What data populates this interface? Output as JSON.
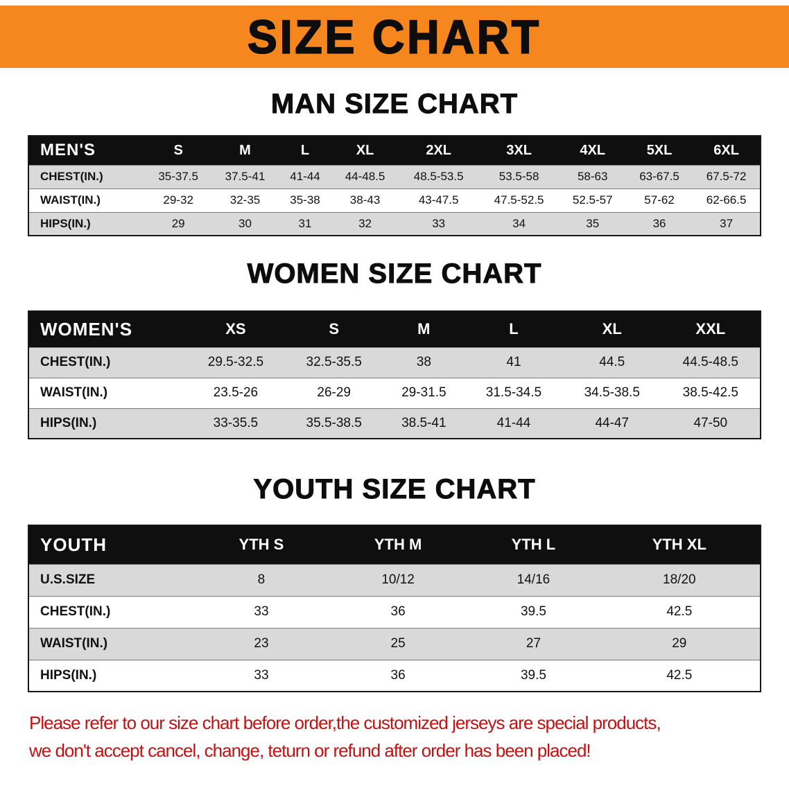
{
  "banner": {
    "title": "SIZE CHART",
    "bg_color": "#f6871f",
    "text_color": "#0d0d0d"
  },
  "sections": [
    {
      "id": "men",
      "heading": "MAN SIZE CHART",
      "table": {
        "title": "MEN'S",
        "columns": [
          "S",
          "M",
          "L",
          "XL",
          "2XL",
          "3XL",
          "4XL",
          "5XL",
          "6XL"
        ],
        "rows": [
          {
            "label": "CHEST(IN.)",
            "values": [
              "35-37.5",
              "37.5-41",
              "41-44",
              "44-48.5",
              "48.5-53.5",
              "53.5-58",
              "58-63",
              "63-67.5",
              "67.5-72"
            ]
          },
          {
            "label": "WAIST(IN.)",
            "values": [
              "29-32",
              "32-35",
              "35-38",
              "38-43",
              "43-47.5",
              "47.5-52.5",
              "52.5-57",
              "57-62",
              "62-66.5"
            ]
          },
          {
            "label": "HIPS(IN.)",
            "values": [
              "29",
              "30",
              "31",
              "32",
              "33",
              "34",
              "35",
              "36",
              "37"
            ]
          }
        ]
      }
    },
    {
      "id": "women",
      "heading": "WOMEN SIZE CHART",
      "table": {
        "title": "WOMEN'S",
        "columns": [
          "XS",
          "S",
          "M",
          "L",
          "XL",
          "XXL"
        ],
        "rows": [
          {
            "label": "CHEST(IN.)",
            "values": [
              "29.5-32.5",
              "32.5-35.5",
              "38",
              "41",
              "44.5",
              "44.5-48.5"
            ]
          },
          {
            "label": "WAIST(IN.)",
            "values": [
              "23.5-26",
              "26-29",
              "29-31.5",
              "31.5-34.5",
              "34.5-38.5",
              "38.5-42.5"
            ]
          },
          {
            "label": "HIPS(IN.)",
            "values": [
              "33-35.5",
              "35.5-38.5",
              "38.5-41",
              "41-44",
              "44-47",
              "47-50"
            ]
          }
        ]
      }
    },
    {
      "id": "youth",
      "heading": "YOUTH SIZE CHART",
      "table": {
        "title": "YOUTH",
        "columns": [
          "YTH S",
          "YTH M",
          "YTH L",
          "YTH XL"
        ],
        "rows": [
          {
            "label": "U.S.SIZE",
            "values": [
              "8",
              "10/12",
              "14/16",
              "18/20"
            ]
          },
          {
            "label": "CHEST(IN.)",
            "values": [
              "33",
              "36",
              "39.5",
              "42.5"
            ]
          },
          {
            "label": "WAIST(IN.)",
            "values": [
              "23",
              "25",
              "27",
              "29"
            ]
          },
          {
            "label": "HIPS(IN.)",
            "values": [
              "33",
              "36",
              "39.5",
              "42.5"
            ]
          }
        ]
      }
    }
  ],
  "colors": {
    "table_header_bg": "#0f0f0f",
    "table_header_text": "#ffffff",
    "row_alt_bg": "#d9d9d9",
    "row_bg": "#ffffff",
    "disclaimer_text": "#c41111"
  },
  "disclaimer": {
    "line1": "Please refer to our size chart before order,the customized jerseys are special products,",
    "line2": "we don't accept cancel, change, teturn or refund after order has been placed!"
  }
}
